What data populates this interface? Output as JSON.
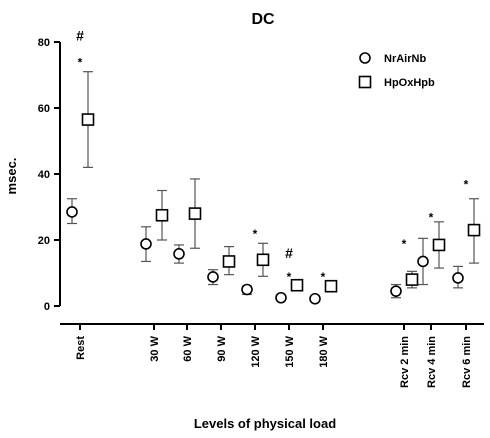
{
  "chart_data": {
    "type": "scatter",
    "title": "DC",
    "xlabel": "Levels of physical load",
    "ylabel": "msec.",
    "ylim": [
      0,
      80
    ],
    "yticks": [
      0,
      20,
      40,
      60,
      80
    ],
    "categories": [
      "Rest",
      "30 W",
      "60 W",
      "90 W",
      "120 W",
      "150 W",
      "180 W",
      "Rcv 2 min",
      "Rcv 4 min",
      "Rcv 6 min"
    ],
    "legend_position": "top-right",
    "grid": false,
    "series": [
      {
        "name": "NrAirNb",
        "marker": "circle",
        "values": [
          28.5,
          18.8,
          15.8,
          8.8,
          5.0,
          2.5,
          2.2,
          4.5,
          13.5,
          8.5
        ],
        "err_low": [
          25.0,
          13.5,
          13.0,
          6.5,
          3.5,
          1.8,
          1.5,
          2.5,
          6.5,
          5.5
        ],
        "err_high": [
          32.5,
          24.0,
          18.5,
          11.0,
          6.0,
          3.0,
          2.8,
          6.5,
          20.5,
          12.0
        ]
      },
      {
        "name": "HpOxHpb",
        "marker": "square",
        "values": [
          56.5,
          27.5,
          28.0,
          13.5,
          14.0,
          6.3,
          6.0,
          8.0,
          18.5,
          23.0
        ],
        "err_low": [
          42.0,
          20.0,
          17.5,
          9.5,
          9.0,
          5.5,
          4.5,
          5.5,
          11.5,
          13.0
        ],
        "err_high": [
          71.0,
          35.0,
          38.5,
          18.0,
          19.0,
          7.0,
          7.5,
          10.5,
          25.5,
          32.5
        ]
      }
    ],
    "annotations": [
      {
        "category": "Rest",
        "text": "#",
        "y": 82
      },
      {
        "category": "Rest",
        "text": "*",
        "y": 75
      },
      {
        "category": "120 W",
        "text": "*",
        "y": 23
      },
      {
        "category": "150 W",
        "text": "#",
        "y": 16
      },
      {
        "category": "150 W",
        "text": "*",
        "y": 10
      },
      {
        "category": "180 W",
        "text": "*",
        "y": 10
      },
      {
        "category": "Rcv 2 min",
        "text": "*",
        "y": 20
      },
      {
        "category": "Rcv 4 min",
        "text": "*",
        "y": 28
      },
      {
        "category": "Rcv 6 min",
        "text": "*",
        "y": 38
      }
    ]
  }
}
